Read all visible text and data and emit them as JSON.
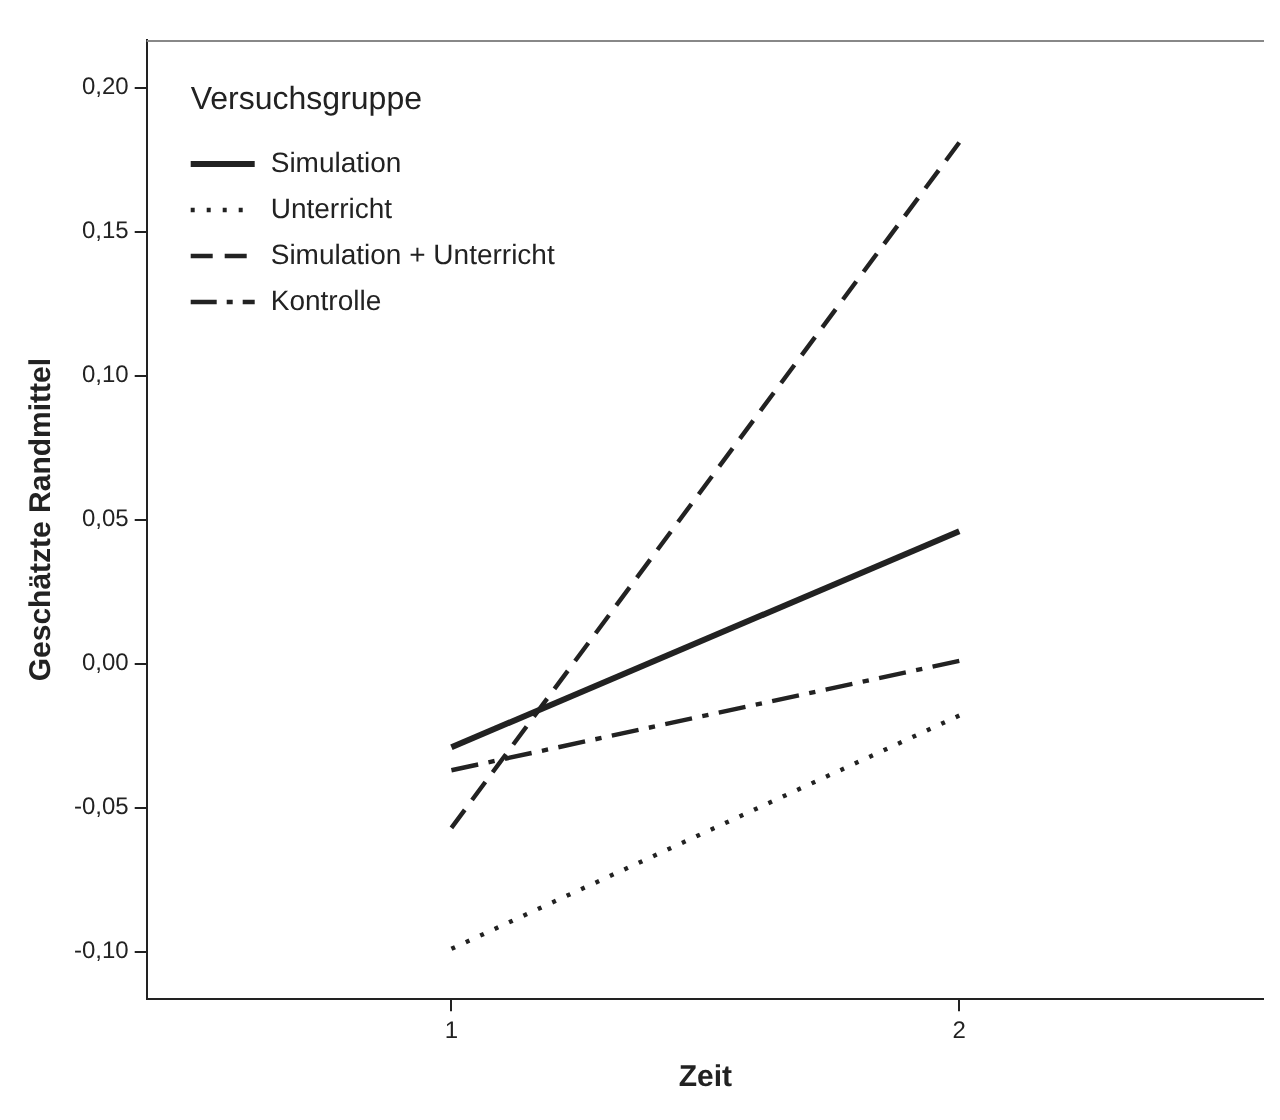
{
  "chart_data": {
    "type": "line",
    "xlabel": "Zeit",
    "ylabel": "Geschätzte Randmittel",
    "legend_title": "Versuchsgruppe",
    "legend": "top left",
    "grid": false,
    "marker": "none",
    "x": [
      1,
      2
    ],
    "xlim": [
      0.4,
      2.6
    ],
    "xticks": [
      1,
      2
    ],
    "ylim": [
      -0.1165,
      0.2166
    ],
    "yticks": [
      {
        "value": -0.1,
        "label": "-0,10"
      },
      {
        "value": -0.05,
        "label": "-0,05"
      },
      {
        "value": 0,
        "label": "0,00"
      },
      {
        "value": 0.05,
        "label": "0,05"
      },
      {
        "value": 0.1,
        "label": "0,10"
      },
      {
        "value": 0.15,
        "label": "0,15"
      },
      {
        "value": 0.2,
        "label": "0,20"
      }
    ],
    "series": [
      {
        "name": "Simulation",
        "color": "#222222",
        "line_style": "solid",
        "values": [
          -0.029,
          0.046
        ]
      },
      {
        "name": "Unterricht",
        "color": "#222222",
        "line_style": "dotted",
        "values": [
          -0.099,
          -0.018
        ]
      },
      {
        "name": "Simulation + Unterricht",
        "color": "#222222",
        "line_style": "dashed",
        "values": [
          -0.057,
          0.181
        ]
      },
      {
        "name": "Kontrolle",
        "color": "#222222",
        "line_style": "dashdot",
        "values": [
          -0.037,
          0.001
        ]
      }
    ]
  }
}
